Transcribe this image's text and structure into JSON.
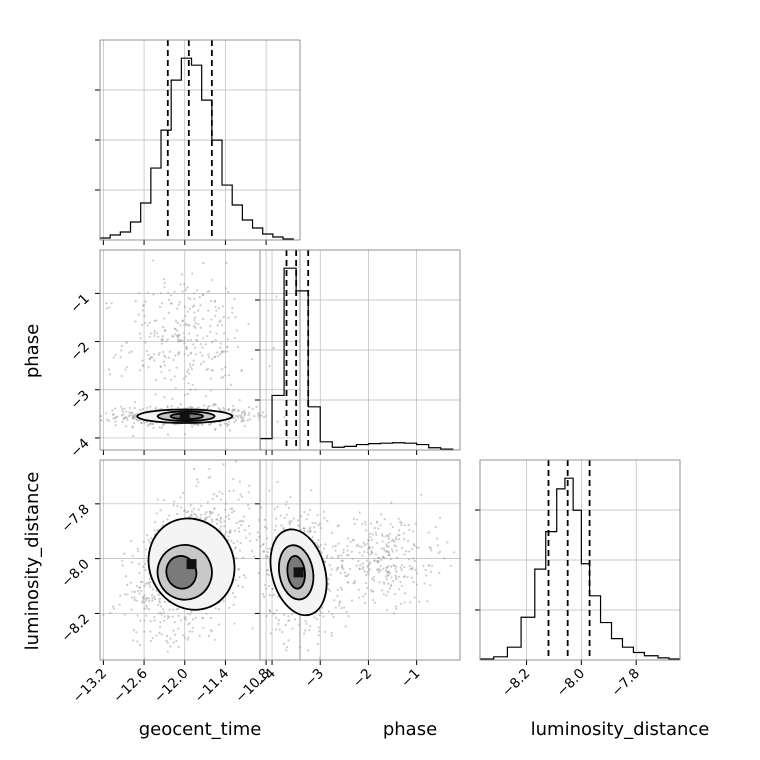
{
  "chart_data": {
    "type": "corner",
    "parameters": [
      "geocent_time",
      "phase",
      "luminosity_distance"
    ],
    "axis_labels": {
      "geocent_time": "geocent_time",
      "phase": "phase",
      "luminosity_distance": "luminosity_distance"
    },
    "ranges": {
      "geocent_time": [
        -13.25,
        -10.3
      ],
      "phase": [
        -4.25,
        -0.1
      ],
      "luminosity_distance": [
        -8.37,
        -7.64
      ]
    },
    "ticks": {
      "geocent_time": [
        "−13.2",
        "−12.6",
        "−12.0",
        "−11.4",
        "−10.8"
      ],
      "phase": [
        "−4",
        "−3",
        "−2",
        "−1"
      ],
      "luminosity_distance": [
        "−8.2",
        "−8.0",
        "−7.8"
      ]
    },
    "tick_values": {
      "geocent_time": [
        -13.2,
        -12.6,
        -12.0,
        -11.4,
        -10.8
      ],
      "phase": [
        -4,
        -3,
        -2,
        -1
      ],
      "luminosity_distance": [
        -8.2,
        -8.0,
        -7.8
      ]
    },
    "quantiles": {
      "geocent_time": [
        -12.25,
        -11.94,
        -11.6
      ],
      "phase": [
        -3.7,
        -3.5,
        -3.25
      ],
      "luminosity_distance": [
        -8.12,
        -8.05,
        -7.97
      ]
    },
    "histograms": {
      "geocent_time": {
        "edges": [
          -13.25,
          -13.1,
          -12.95,
          -12.8,
          -12.65,
          -12.5,
          -12.35,
          -12.2,
          -12.05,
          -11.9,
          -11.75,
          -11.6,
          -11.45,
          -11.3,
          -11.15,
          -11.0,
          -10.85,
          -10.7,
          -10.55,
          -10.4
        ],
        "counts": [
          2,
          5,
          8,
          18,
          37,
          72,
          110,
          160,
          182,
          175,
          140,
          100,
          55,
          35,
          20,
          12,
          6,
          3,
          1
        ]
      },
      "phase": {
        "edges": [
          -4.25,
          -4.0,
          -3.75,
          -3.5,
          -3.25,
          -3.0,
          -2.75,
          -2.5,
          -2.25,
          -2.0,
          -1.75,
          -1.5,
          -1.25,
          -1.0,
          -0.75,
          -0.5,
          -0.25
        ],
        "counts": [
          25,
          120,
          400,
          350,
          95,
          18,
          6,
          8,
          12,
          14,
          15,
          16,
          15,
          12,
          5,
          2
        ]
      },
      "luminosity_distance": {
        "edges": [
          -8.37,
          -8.32,
          -8.27,
          -8.22,
          -8.17,
          -8.13,
          -8.09,
          -8.06,
          -8.03,
          -8.0,
          -7.97,
          -7.93,
          -7.89,
          -7.85,
          -7.81,
          -7.77,
          -7.72,
          -7.68,
          -7.64
        ],
        "counts": [
          1,
          3,
          12,
          40,
          85,
          120,
          160,
          170,
          140,
          90,
          60,
          35,
          20,
          12,
          7,
          4,
          2,
          1
        ]
      }
    },
    "levels": {
      "geocent_time__phase": [
        [
          -12.0,
          -3.55,
          0.7,
          0.14,
          0
        ],
        [
          -11.98,
          -3.55,
          0.42,
          0.1,
          0
        ],
        [
          -11.97,
          -3.55,
          0.24,
          0.06,
          0
        ]
      ],
      "geocent_time__luminosity_distance": [
        [
          -11.9,
          -8.02,
          0.62,
          0.17,
          27
        ],
        [
          -12.0,
          -8.05,
          0.4,
          0.1,
          20
        ],
        [
          -12.05,
          -8.05,
          0.22,
          0.06,
          15
        ]
      ],
      "phase__luminosity_distance": [
        [
          -3.45,
          -8.05,
          0.55,
          0.16,
          15
        ],
        [
          -3.5,
          -8.05,
          0.35,
          0.1,
          10
        ],
        [
          -3.5,
          -8.05,
          0.18,
          0.06,
          6
        ]
      ]
    },
    "grid": true,
    "quantile_line_style": "dashed"
  }
}
